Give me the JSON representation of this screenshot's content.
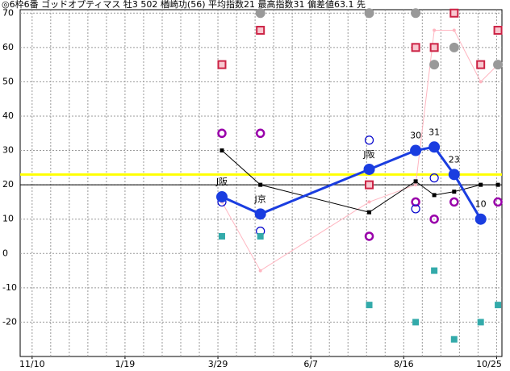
{
  "chart_data": {
    "type": "scatter",
    "title": "◎6枠6番 ゴッドオプティマス 牡3 502 楢崎功(56) 平均指数21 最高指数31 偏差値63.1 先",
    "xlim": [
      -9,
      354
    ],
    "xticks": [
      {
        "value": 0,
        "label": "11/10"
      },
      {
        "value": 70,
        "label": "1/19"
      },
      {
        "value": 140,
        "label": "3/29"
      },
      {
        "value": 210,
        "label": "6/7"
      },
      {
        "value": 280,
        "label": "8/16"
      },
      {
        "value": 350,
        "label": "10/25"
      }
    ],
    "xgrid_step": 14,
    "ylim": [
      -30,
      71
    ],
    "yticks": [
      -20,
      -10,
      0,
      10,
      20,
      30,
      40,
      50,
      60,
      70
    ],
    "grid": true,
    "x": [
      143,
      172,
      254,
      289,
      303,
      318,
      338,
      351
    ],
    "reference_lines": [
      {
        "value": 23,
        "color": "#ffff00",
        "width": 3
      },
      {
        "value": 20,
        "color": "#000000",
        "width": 1
      }
    ],
    "series": [
      {
        "color": "#ffb6c1",
        "marker": "dot",
        "line": true,
        "width": 1,
        "values": [
          15,
          -5,
          15,
          20,
          65,
          65,
          50,
          55
        ]
      },
      {
        "color": "#000000",
        "marker": "small-square",
        "line": true,
        "width": 1,
        "values": [
          30,
          20,
          12,
          21,
          17,
          18,
          20,
          20
        ]
      },
      {
        "color": "#cc2244",
        "marker": "square-box",
        "line": false,
        "values": [
          55,
          65,
          20,
          60,
          60,
          70,
          55,
          65
        ]
      },
      {
        "color": "#999999",
        "marker": "circle-filled",
        "line": false,
        "values": [
          null,
          70,
          70,
          70,
          55,
          60,
          null,
          55
        ]
      },
      {
        "color": "#9900aa",
        "marker": "ring",
        "line": false,
        "values": [
          35,
          35,
          5,
          15,
          10,
          15,
          null,
          15
        ]
      },
      {
        "color": "#0000cc",
        "marker": "circle-open",
        "line": false,
        "values": [
          15,
          6.5,
          33,
          13,
          22,
          null,
          null,
          null
        ]
      },
      {
        "color": "#33aaaa",
        "marker": "square-filled",
        "line": false,
        "values": [
          5,
          5,
          -15,
          -20,
          -5,
          -25,
          -20,
          -15
        ]
      },
      {
        "color": "#1a3de0",
        "marker": "big-dot",
        "line": true,
        "width": 3,
        "values": [
          16.5,
          11.5,
          24.5,
          30,
          31,
          23,
          10,
          null
        ],
        "point_labels": [
          "J阪",
          "J京",
          "J阪",
          "30",
          "31",
          "23",
          "10",
          null
        ]
      }
    ]
  }
}
